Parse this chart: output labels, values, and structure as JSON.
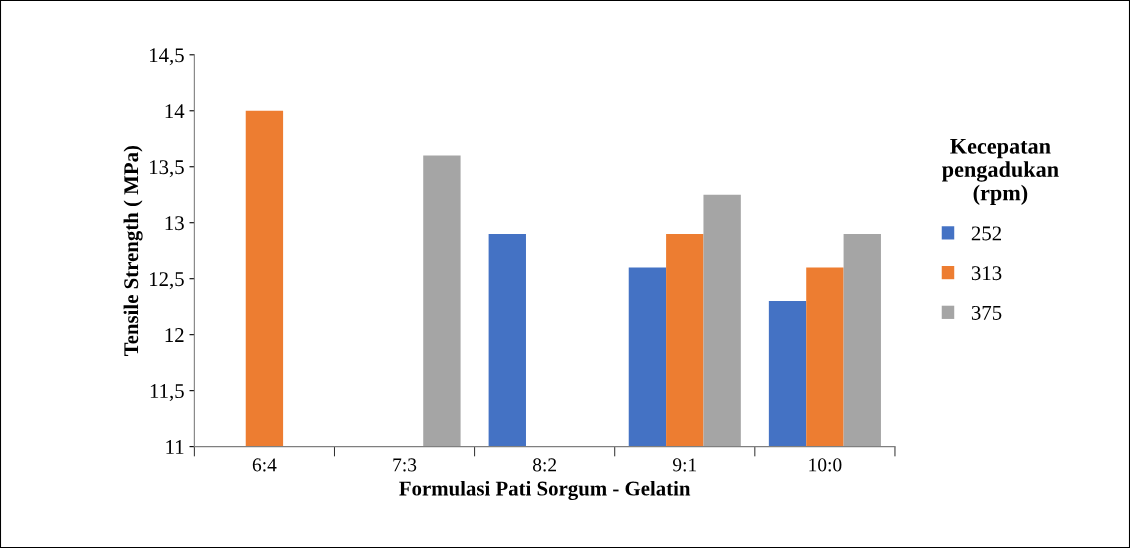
{
  "chart_data": {
    "type": "bar",
    "xlabel": "Formulasi Pati Sorgum - Gelatin",
    "ylabel": "Tensile Strength ( MPa)",
    "legend_title": "Kecepatan\npengadukan\n(rpm)",
    "legend": "right",
    "grid": false,
    "categories": [
      "6:4",
      "7:3",
      "8:2",
      "9:1",
      "10:0"
    ],
    "series": [
      {
        "name": "252",
        "color": "#4472c4",
        "values": [
          null,
          null,
          12.9,
          12.6,
          12.3
        ]
      },
      {
        "name": "313",
        "color": "#ed7d31",
        "values": [
          14,
          null,
          null,
          12.9,
          12.6
        ]
      },
      {
        "name": "375",
        "color": "#a5a5a5",
        "values": [
          null,
          13.6,
          null,
          13.25,
          12.9
        ]
      }
    ],
    "ylim": [
      11,
      14.5
    ],
    "yticks": [
      11,
      {
        "value": 11.5,
        "label": "11,5"
      },
      12,
      {
        "value": 12.5,
        "label": "12,5"
      },
      13,
      {
        "value": 13.5,
        "label": "13,5"
      },
      14,
      {
        "value": 14.5,
        "label": "14,5"
      }
    ]
  }
}
